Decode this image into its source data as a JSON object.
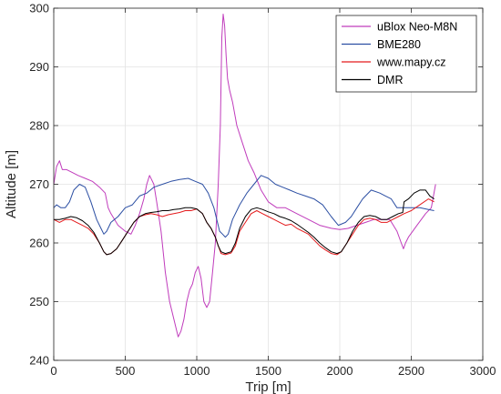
{
  "chart_data": {
    "type": "line",
    "xlabel": "Trip [m]",
    "ylabel": "Altitude [m]",
    "xlim": [
      0,
      3000
    ],
    "ylim": [
      240,
      300
    ],
    "xticks": [
      0,
      500,
      1000,
      1500,
      2000,
      2500,
      3000
    ],
    "yticks": [
      240,
      250,
      260,
      270,
      280,
      290,
      300
    ],
    "grid": true,
    "legend_position": "top-right",
    "series": [
      {
        "name": "uBlox Neo-M8N",
        "color": "#c03cbc",
        "x": [
          0,
          20,
          40,
          60,
          90,
          130,
          170,
          220,
          270,
          320,
          360,
          380,
          400,
          450,
          500,
          540,
          570,
          600,
          630,
          650,
          670,
          700,
          720,
          750,
          780,
          810,
          840,
          870,
          890,
          910,
          930,
          950,
          970,
          990,
          1010,
          1030,
          1050,
          1070,
          1090,
          1110,
          1130,
          1150,
          1165,
          1175,
          1185,
          1195,
          1205,
          1215,
          1230,
          1250,
          1280,
          1320,
          1360,
          1400,
          1450,
          1500,
          1560,
          1620,
          1700,
          1780,
          1860,
          1940,
          2000,
          2060,
          2120,
          2180,
          2240,
          2300,
          2350,
          2400,
          2430,
          2445,
          2460,
          2480,
          2510,
          2540,
          2570,
          2600,
          2640,
          2670
        ],
        "y": [
          270,
          273,
          274,
          272.5,
          272.5,
          272,
          271.5,
          271,
          270.5,
          269.5,
          268.5,
          266,
          265,
          263,
          262,
          261.5,
          263,
          265,
          267.5,
          270,
          271.5,
          270,
          267,
          262,
          255,
          250,
          247,
          244,
          245,
          247,
          250,
          252,
          253,
          255,
          256,
          254,
          250,
          249,
          250,
          255,
          260,
          270,
          280,
          295,
          299,
          297,
          292,
          288,
          286,
          284,
          280,
          277,
          274,
          272,
          269,
          267,
          266,
          266,
          265,
          264,
          263,
          262.5,
          262.3,
          262.5,
          263,
          263.5,
          264,
          264,
          264,
          262,
          260,
          259,
          260,
          261,
          262,
          263,
          264,
          265,
          266,
          270
        ]
      },
      {
        "name": "BME280",
        "color": "#2c4fa3",
        "x": [
          0,
          20,
          50,
          80,
          110,
          140,
          180,
          220,
          260,
          300,
          330,
          350,
          370,
          400,
          450,
          500,
          550,
          600,
          650,
          700,
          760,
          820,
          880,
          940,
          990,
          1040,
          1080,
          1120,
          1160,
          1180,
          1200,
          1220,
          1250,
          1300,
          1350,
          1400,
          1450,
          1500,
          1550,
          1600,
          1650,
          1700,
          1760,
          1820,
          1880,
          1940,
          1990,
          2040,
          2080,
          2120,
          2160,
          2220,
          2280,
          2320,
          2360,
          2400,
          2450,
          2500,
          2560,
          2620,
          2660
        ],
        "y": [
          266,
          266.5,
          266,
          266,
          267,
          269,
          270,
          269.5,
          267,
          264,
          262.5,
          261.5,
          262,
          263.5,
          264.5,
          266,
          266.5,
          268,
          268.5,
          269.5,
          270,
          270.5,
          270.8,
          271,
          270.5,
          270,
          268.5,
          266,
          262,
          261.5,
          261,
          261.5,
          264,
          266.5,
          268.5,
          270,
          271.5,
          271,
          270,
          269.5,
          269,
          268.5,
          268,
          267.5,
          266.5,
          264.5,
          263,
          263.5,
          264.5,
          266,
          267.5,
          269,
          268.5,
          268,
          267.5,
          266,
          266,
          266,
          266,
          265.7,
          265.5
        ]
      },
      {
        "name": "www.mapy.cz",
        "color": "#e41a1c",
        "x": [
          0,
          40,
          80,
          120,
          160,
          200,
          240,
          280,
          320,
          350,
          370,
          400,
          440,
          480,
          520,
          560,
          600,
          640,
          680,
          720,
          760,
          800,
          840,
          880,
          920,
          960,
          1000,
          1040,
          1070,
          1100,
          1130,
          1150,
          1170,
          1200,
          1240,
          1270,
          1300,
          1340,
          1380,
          1420,
          1460,
          1500,
          1540,
          1580,
          1620,
          1660,
          1700,
          1740,
          1780,
          1820,
          1860,
          1900,
          1940,
          1980,
          2010,
          2050,
          2090,
          2130,
          2170,
          2210,
          2250,
          2290,
          2330,
          2370,
          2410,
          2450,
          2500,
          2560,
          2620,
          2660
        ],
        "y": [
          264,
          263.5,
          264,
          264,
          263.5,
          263,
          262.5,
          261.5,
          260,
          258.5,
          258,
          258.2,
          259,
          260.5,
          262,
          263.5,
          264.5,
          264.8,
          265,
          264.8,
          264.5,
          264.8,
          265,
          265.2,
          265.5,
          265.5,
          265.8,
          265,
          263.5,
          262.5,
          261,
          259.5,
          258.2,
          258,
          258.3,
          259.5,
          262,
          263.5,
          265,
          265.5,
          265,
          264.5,
          264,
          263.5,
          263,
          263.2,
          262.5,
          262,
          261.5,
          260.5,
          259.5,
          258.8,
          258.2,
          258,
          258.5,
          260,
          261.5,
          263,
          264,
          264.2,
          264,
          263.5,
          263.5,
          264,
          264.5,
          265,
          265.5,
          266.5,
          267.5,
          267
        ]
      },
      {
        "name": "DMR",
        "color": "#000000",
        "x": [
          0,
          40,
          80,
          120,
          160,
          200,
          240,
          280,
          320,
          350,
          370,
          400,
          440,
          480,
          520,
          560,
          600,
          640,
          680,
          720,
          760,
          800,
          840,
          880,
          920,
          960,
          1000,
          1040,
          1070,
          1100,
          1130,
          1150,
          1170,
          1200,
          1240,
          1270,
          1300,
          1340,
          1380,
          1420,
          1460,
          1500,
          1540,
          1580,
          1620,
          1660,
          1700,
          1740,
          1780,
          1820,
          1860,
          1900,
          1940,
          1980,
          2010,
          2050,
          2090,
          2130,
          2170,
          2210,
          2250,
          2290,
          2330,
          2370,
          2410,
          2440,
          2450,
          2480,
          2520,
          2560,
          2600,
          2630,
          2660
        ],
        "y": [
          264,
          264,
          264.2,
          264.5,
          264.3,
          263.8,
          263,
          261.8,
          260,
          258.5,
          258,
          258.2,
          259,
          260.5,
          262,
          263.5,
          264.5,
          265,
          265.2,
          265.3,
          265.5,
          265.5,
          265.7,
          265.8,
          266,
          266,
          265.8,
          265,
          263.5,
          262.5,
          261,
          259.5,
          258.5,
          258.2,
          258.5,
          260,
          262.5,
          264.5,
          265.7,
          266,
          265.7,
          265.3,
          265,
          264.5,
          264.2,
          263.8,
          263.2,
          262.5,
          261.8,
          261,
          260,
          259.2,
          258.5,
          258.2,
          258.5,
          260,
          262,
          263.5,
          264.5,
          264.7,
          264.5,
          264,
          264,
          264.5,
          265,
          265.2,
          267,
          267.5,
          268.5,
          269,
          269,
          268,
          267.5
        ]
      }
    ]
  }
}
